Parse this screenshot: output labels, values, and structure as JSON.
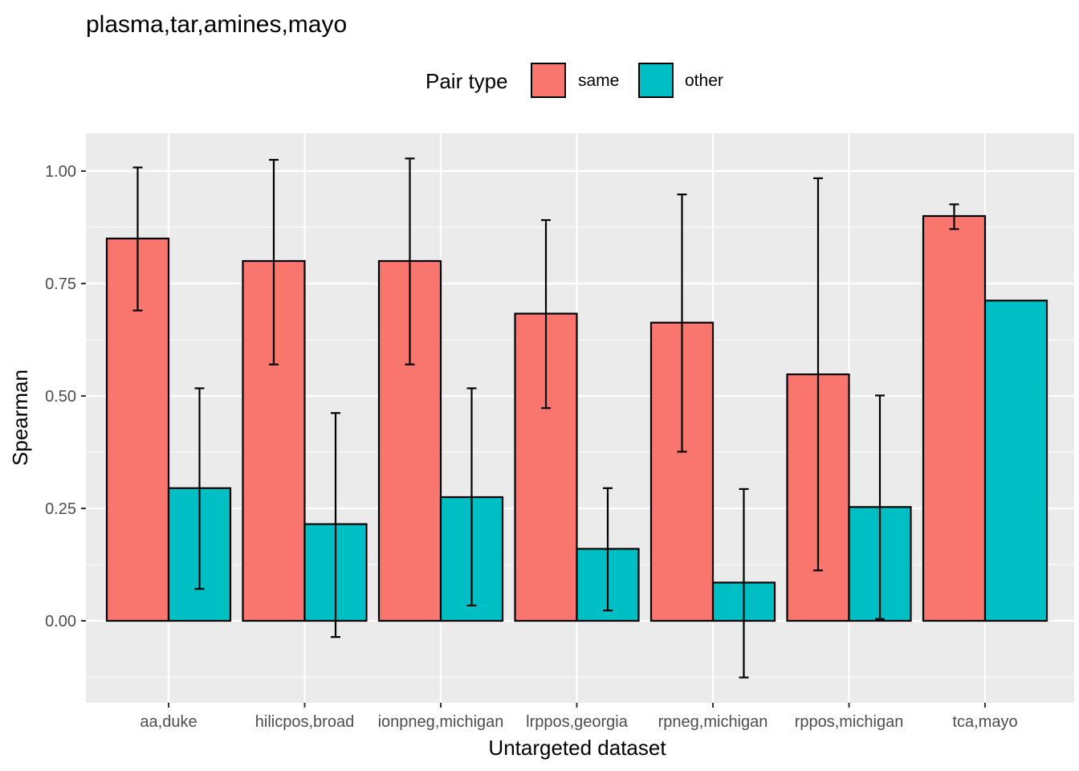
{
  "chart_data": {
    "type": "bar",
    "title": "plasma,tar,amines,mayo",
    "xlabel": "Untargeted dataset",
    "ylabel": "Spearman",
    "ylim": [
      -0.18,
      1.07
    ],
    "yticks": [
      0.0,
      0.25,
      0.5,
      0.75,
      1.0
    ],
    "ytick_labels": [
      "0.00",
      "0.25",
      "0.50",
      "0.75",
      "1.00"
    ],
    "grid": true,
    "legend": {
      "title": "Pair type",
      "position": "top"
    },
    "categories": [
      "aa,duke",
      "hilicpos,broad",
      "ionpneg,michigan",
      "lrppos,georgia",
      "rpneg,michigan",
      "rppos,michigan",
      "tca,mayo"
    ],
    "series": [
      {
        "name": "same",
        "color": "#F8766D",
        "values": [
          0.85,
          0.8,
          0.8,
          0.683,
          0.663,
          0.548,
          0.9
        ],
        "err_low": [
          0.69,
          0.57,
          0.57,
          0.473,
          0.376,
          0.112,
          0.871
        ],
        "err_high": [
          1.008,
          1.025,
          1.028,
          0.891,
          0.948,
          0.984,
          0.926
        ]
      },
      {
        "name": "other",
        "color": "#00BFC4",
        "values": [
          0.295,
          0.215,
          0.275,
          0.16,
          0.085,
          0.253,
          0.712
        ],
        "err_low": [
          0.071,
          -0.036,
          0.034,
          0.023,
          -0.126,
          0.004,
          null
        ],
        "err_high": [
          0.517,
          0.462,
          0.517,
          0.295,
          0.293,
          0.501,
          null
        ]
      }
    ]
  }
}
